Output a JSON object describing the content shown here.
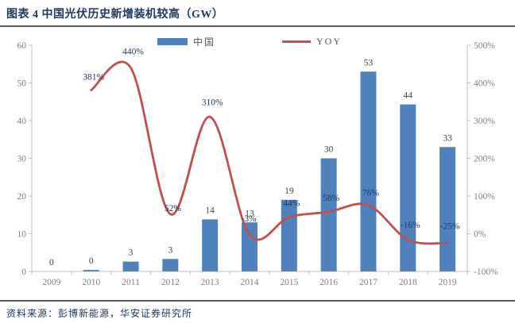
{
  "header": {
    "title": "图表 4 中国光伏历史新增装机较高（GW）"
  },
  "legend": [
    {
      "label": "中国",
      "type": "bar",
      "color": "#4f81bd"
    },
    {
      "label": "YOY",
      "type": "line",
      "color": "#c0504d"
    }
  ],
  "footer": {
    "source": "资料来源：彭博新能源，华安证券研究所"
  },
  "colors": {
    "bar": "#4f81bd",
    "line": "#c0504d",
    "axis": "#bfbfbf",
    "tick_text": "#808080",
    "bar_label": "#404040",
    "pct_label": "#1f3864",
    "title": "#1f3864"
  },
  "chart_data": {
    "type": "bar",
    "title": "图表 4 中国光伏历史新增装机较高（GW）",
    "categories": [
      "2009",
      "2010",
      "2011",
      "2012",
      "2013",
      "2014",
      "2015",
      "2016",
      "2017",
      "2018",
      "2019"
    ],
    "series": [
      {
        "name": "中国",
        "type": "bar",
        "axis": "left",
        "values": [
          0,
          0,
          3,
          3,
          14,
          13,
          19,
          30,
          53,
          44,
          33
        ],
        "values_plot": [
          0,
          0.4,
          2.6,
          3.3,
          13.8,
          13,
          19,
          30,
          53,
          44.3,
          33
        ],
        "labels": [
          "0",
          "0",
          "3",
          "3",
          "14",
          "13",
          "19",
          "30",
          "53",
          "44",
          "33"
        ]
      },
      {
        "name": "YOY",
        "type": "line",
        "axis": "right",
        "values": [
          null,
          381,
          440,
          52,
          310,
          -3,
          44,
          58,
          76,
          -16,
          -25
        ],
        "labels": [
          null,
          "381%",
          "440%",
          "52%",
          "310%",
          "-3%",
          "44%",
          "58%",
          "76%",
          "-16%",
          "-25%"
        ]
      }
    ],
    "left_axis": {
      "min": 0,
      "max": 60,
      "step": 10,
      "ticks": [
        "0",
        "10",
        "20",
        "30",
        "40",
        "50",
        "60"
      ]
    },
    "right_axis": {
      "min": -100,
      "max": 500,
      "step": 100,
      "ticks": [
        "-100%",
        "0%",
        "100%",
        "200%",
        "300%",
        "400%",
        "500%"
      ]
    },
    "grid": false,
    "legend_position": "top",
    "source": "资料来源：彭博新能源，华安证券研究所"
  }
}
